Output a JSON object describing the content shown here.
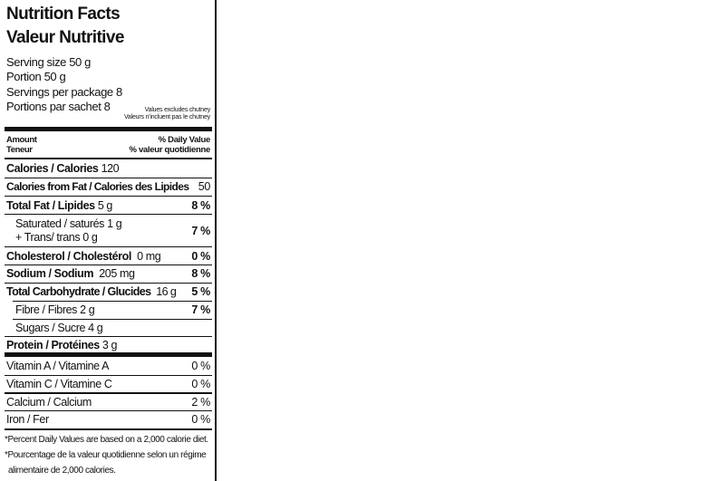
{
  "title_en": "Nutrition Facts",
  "title_fr": "Valeur Nutritive",
  "serving": [
    "Serving size 50 g",
    "Portion 50 g",
    "Servings per package 8",
    "Portions par sachet 8"
  ],
  "note": [
    "Values excludes chutney",
    "Valeurs n'incluent pas le chutney"
  ],
  "header": {
    "amount": "Amount",
    "teneur": "Teneur",
    "dv": "% Daily Value",
    "vq": "% valeur quotidienne"
  },
  "rows": [
    {
      "label": "Calories / Calories",
      "amount": "120",
      "dv": ""
    },
    {
      "label": "Calories  from Fat / Calories des Lipides",
      "amount": "",
      "dv": "50"
    },
    {
      "label": "Total Fat / Lipides",
      "amount": "5 g",
      "dv": "8 %"
    },
    {
      "label": "Saturated / saturés 1 g",
      "label2": "+ Trans/ trans 0 g",
      "dv": "7 %"
    },
    {
      "label": "Cholesterol / Cholestérol",
      "amount": "0 mg",
      "dv": "0 %"
    },
    {
      "label": "Sodium / Sodium",
      "amount": "205 mg",
      "dv": "8 %"
    },
    {
      "label": "Total Carbohydrate / Glucides",
      "amount": "16 g",
      "dv": "5 %"
    },
    {
      "label": "Fibre / Fibres 2 g",
      "dv": "7 %"
    },
    {
      "label": "Sugars / Sucre 4 g"
    },
    {
      "label": "Protein / Protéines",
      "amount": "3 g"
    }
  ],
  "vitamins": [
    {
      "label": "Vitamin A / Vitamine A",
      "dv": "0 %"
    },
    {
      "label": "Vitamin C / Vitamine C",
      "dv": "0 %"
    },
    {
      "label": "Calcium / Calcium",
      "dv": "2 %"
    },
    {
      "label": "Iron / Fer",
      "dv": "0 %"
    }
  ],
  "footnotes": [
    "*Percent Daily Values are based on a 2,000 calorie diet.",
    "*Pourcentage de la valeur quotidienne selon un régime",
    "alimentaire de  2,000 calories."
  ]
}
